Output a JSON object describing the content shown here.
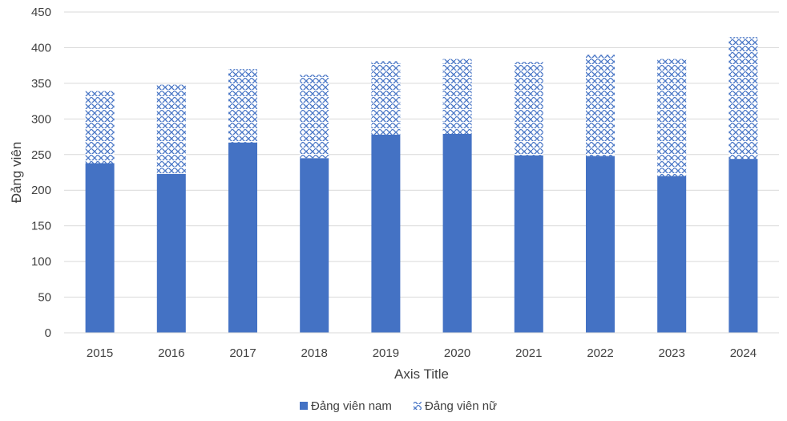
{
  "chart_data": {
    "type": "bar",
    "stacked": true,
    "categories": [
      "2015",
      "2016",
      "2017",
      "2018",
      "2019",
      "2020",
      "2021",
      "2022",
      "2023",
      "2024"
    ],
    "series": [
      {
        "name": "Đảng viên nam",
        "color": "#4472C4",
        "pattern": "solid",
        "values": [
          238,
          223,
          267,
          245,
          278,
          279,
          249,
          248,
          220,
          244
        ]
      },
      {
        "name": "Đảng viên nữ",
        "color": "#4472C4",
        "pattern": "wave",
        "values": [
          101,
          125,
          103,
          117,
          103,
          105,
          131,
          142,
          164,
          171
        ]
      }
    ],
    "title": "",
    "xlabel": "Axis Title",
    "ylabel": "Đảng viên",
    "ylim": [
      0,
      450
    ],
    "yticks": [
      0,
      50,
      100,
      150,
      200,
      250,
      300,
      350,
      400,
      450
    ],
    "grid": "horizontal",
    "legend": "bottom"
  }
}
